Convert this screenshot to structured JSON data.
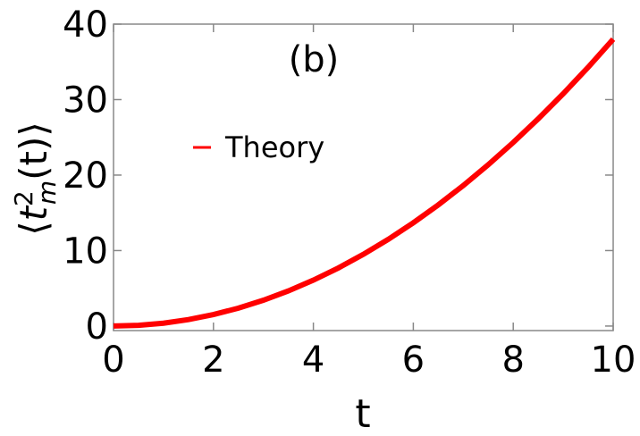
{
  "chart_data": {
    "type": "line",
    "annotation": "(b)",
    "xlabel": "t",
    "ylabel": {
      "open": "⟨",
      "base": "t",
      "sup": "2",
      "sub": "m",
      "rest": "(t)⟩"
    },
    "x": [
      0,
      0.5,
      1,
      1.5,
      2,
      2.5,
      3,
      3.5,
      4,
      4.5,
      5,
      5.5,
      6,
      6.5,
      7,
      7.5,
      8,
      8.5,
      9,
      9.5,
      10
    ],
    "series": [
      {
        "name": "Theory",
        "color": "#ff0000",
        "values": [
          0,
          0.095,
          0.38,
          0.855,
          1.52,
          2.375,
          3.42,
          4.655,
          6.08,
          7.695,
          9.5,
          11.495,
          13.68,
          16.055,
          18.62,
          21.375,
          24.32,
          27.455,
          30.78,
          34.295,
          38
        ]
      }
    ],
    "xlim": [
      0,
      10
    ],
    "xticks": [
      0,
      2,
      4,
      6,
      8,
      10
    ],
    "ylim": [
      -0.6,
      40
    ],
    "yticks": [
      0,
      10,
      20,
      30,
      40
    ],
    "grid": false
  }
}
